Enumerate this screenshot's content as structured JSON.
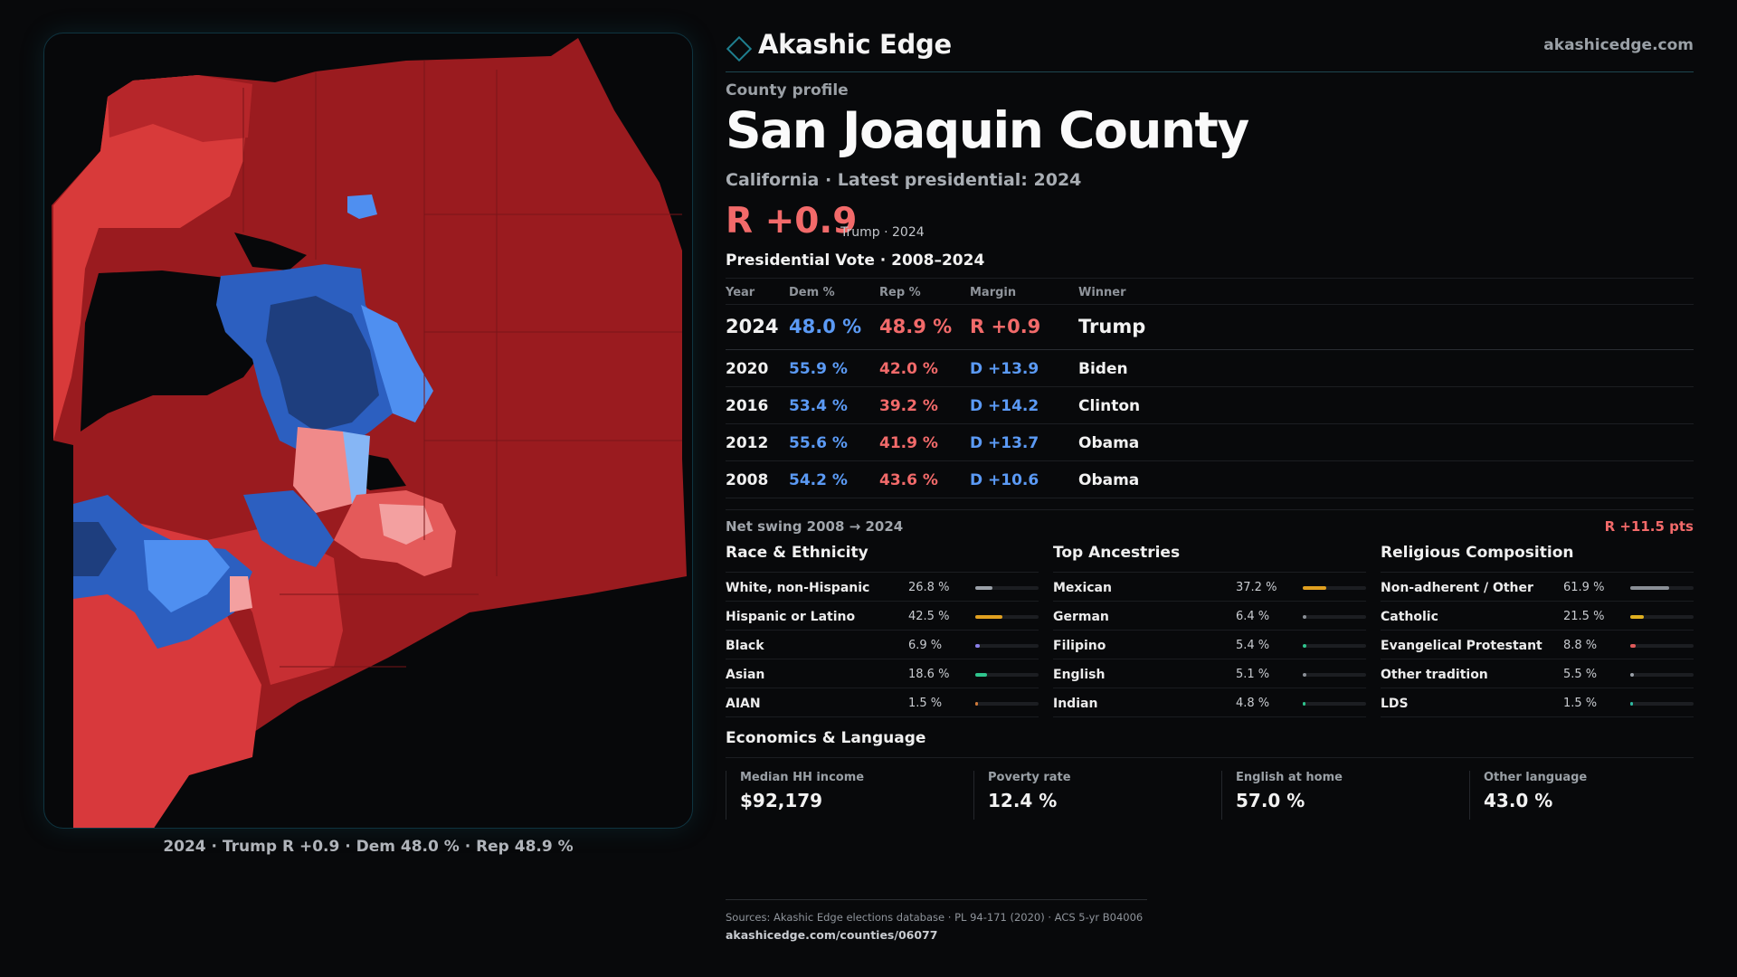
{
  "header": {
    "brand": "Akashic Edge",
    "site": "akashicedge.com"
  },
  "profile": {
    "eyebrow": "County profile",
    "title": "San Joaquin County",
    "subtitle": "California · Latest presidential: 2024",
    "margin": "R +0.9",
    "margin_note": "Trump · 2024"
  },
  "vote": {
    "title": "Presidential Vote · 2008–2024",
    "headers": {
      "year": "Year",
      "dem": "Dem %",
      "rep": "Rep %",
      "margin": "Margin",
      "winner": "Winner"
    },
    "rows": [
      {
        "year": "2024",
        "dem": "48.0 %",
        "rep": "48.9 %",
        "margin": "R +0.9",
        "winner": "Trump"
      },
      {
        "year": "2020",
        "dem": "55.9 %",
        "rep": "42.0 %",
        "margin": "D +13.9",
        "winner": "Biden"
      },
      {
        "year": "2016",
        "dem": "53.4 %",
        "rep": "39.2 %",
        "margin": "D +14.2",
        "winner": "Clinton"
      },
      {
        "year": "2012",
        "dem": "55.6 %",
        "rep": "41.9 %",
        "margin": "D +13.7",
        "winner": "Obama"
      },
      {
        "year": "2008",
        "dem": "54.2 %",
        "rep": "43.6 %",
        "margin": "D +10.6",
        "winner": "Obama"
      }
    ],
    "swing_label": "Net swing 2008 → 2024",
    "swing_value": "R +11.5 pts"
  },
  "race": {
    "title": "Race & Ethnicity",
    "items": [
      {
        "name": "White, non-Hispanic",
        "pct": "26.8 %",
        "value": 26.8,
        "color": "#9aa0a8"
      },
      {
        "name": "Hispanic or Latino",
        "pct": "42.5 %",
        "value": 42.5,
        "color": "#e0a020"
      },
      {
        "name": "Black",
        "pct": "6.9 %",
        "value": 6.9,
        "color": "#8a7fe8"
      },
      {
        "name": "Asian",
        "pct": "18.6 %",
        "value": 18.6,
        "color": "#2fc48d"
      },
      {
        "name": "AIAN",
        "pct": "1.5 %",
        "value": 1.5,
        "color": "#d07a3a"
      }
    ]
  },
  "ancestry": {
    "title": "Top Ancestries",
    "items": [
      {
        "name": "Mexican",
        "pct": "37.2 %",
        "value": 37.2,
        "color": "#e0a020"
      },
      {
        "name": "German",
        "pct": "6.4 %",
        "value": 6.4,
        "color": "#8a8f96"
      },
      {
        "name": "Filipino",
        "pct": "5.4 %",
        "value": 5.4,
        "color": "#2fc48d"
      },
      {
        "name": "English",
        "pct": "5.1 %",
        "value": 5.1,
        "color": "#8a8f96"
      },
      {
        "name": "Indian",
        "pct": "4.8 %",
        "value": 4.8,
        "color": "#2fc48d"
      }
    ]
  },
  "religion": {
    "title": "Religious Composition",
    "items": [
      {
        "name": "Non-adherent / Other",
        "pct": "61.9 %",
        "value": 61.9,
        "color": "#8a8f96"
      },
      {
        "name": "Catholic",
        "pct": "21.5 %",
        "value": 21.5,
        "color": "#e0b020"
      },
      {
        "name": "Evangelical Protestant",
        "pct": "8.8 %",
        "value": 8.8,
        "color": "#e05a5a"
      },
      {
        "name": "Other tradition",
        "pct": "5.5 %",
        "value": 5.5,
        "color": "#9aa0a8"
      },
      {
        "name": "LDS",
        "pct": "1.5 %",
        "value": 1.5,
        "color": "#2fb8a0"
      }
    ]
  },
  "economics": {
    "title": "Economics & Language",
    "items": [
      {
        "label": "Median HH income",
        "value": "$92,179"
      },
      {
        "label": "Poverty rate",
        "value": "12.4 %"
      },
      {
        "label": "English at home",
        "value": "57.0 %"
      },
      {
        "label": "Other language",
        "value": "43.0 %"
      }
    ]
  },
  "map": {
    "caption": "2024 · Trump R +0.9 · Dem 48.0 % · Rep 48.9 %"
  },
  "footer": {
    "sources": "Sources: Akashic Edge elections database · PL 94-171 (2020) · ACS 5-yr B04006",
    "url": "akashicedge.com/counties/06077"
  }
}
